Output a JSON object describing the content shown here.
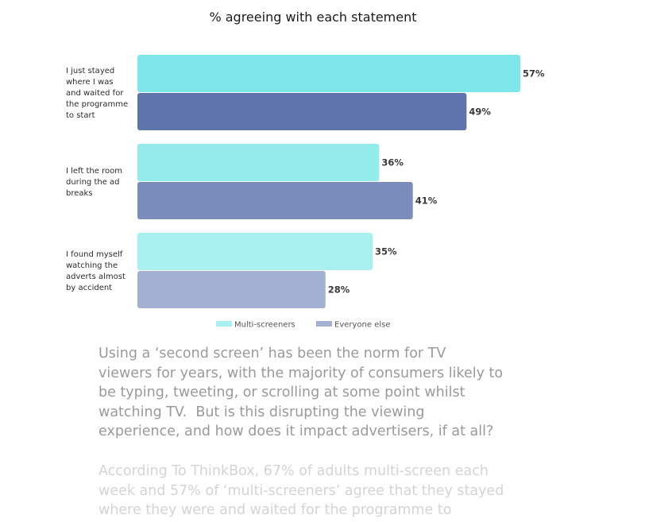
{
  "chart_data": {
    "type": "bar",
    "orientation": "horizontal",
    "title": "% agreeing with each statement",
    "categories": [
      [
        "I just stayed",
        "where I was",
        "and waited for",
        "the programme",
        "to start"
      ],
      [
        "I left the room",
        "during the ad",
        "breaks"
      ],
      [
        "I found myself",
        "watching the",
        "adverts almost",
        "by accident"
      ]
    ],
    "series": [
      {
        "name": "Multi-screeners",
        "values": [
          57,
          36,
          35
        ],
        "labels": [
          "57%",
          "36%",
          "35%"
        ]
      },
      {
        "name": "Everyone else",
        "values": [
          49,
          41,
          28
        ],
        "labels": [
          "49%",
          "41%",
          "28%"
        ]
      }
    ],
    "colors": {
      "series_0": [
        "#7de7e9",
        "#93ebec",
        "#a9f0f0"
      ],
      "series_1": [
        "#5e74ab",
        "#7a8cbc",
        "#a4b0d2"
      ]
    },
    "xlim": [
      0,
      100
    ],
    "grid": false,
    "legend_position": "bottom-center",
    "legend_colors": [
      "#a9f0f0",
      "#a4b0d2"
    ]
  },
  "article": {
    "paragraph_1": [
      "Using a ‘second screen’ has been the norm for TV",
      "viewers for years, with the majority of consumers likely to",
      "be typing, tweeting, or scrolling at some point whilst",
      "watching TV.  But is this disrupting the viewing",
      "experience, and how does it impact advertisers, if at all?"
    ],
    "paragraph_2": [
      "According To ThinkBox, 67% of adults multi-screen each",
      "week and 57% of ‘multi-screeners’ agree that they stayed",
      "where they were and waited for the programme to"
    ]
  }
}
